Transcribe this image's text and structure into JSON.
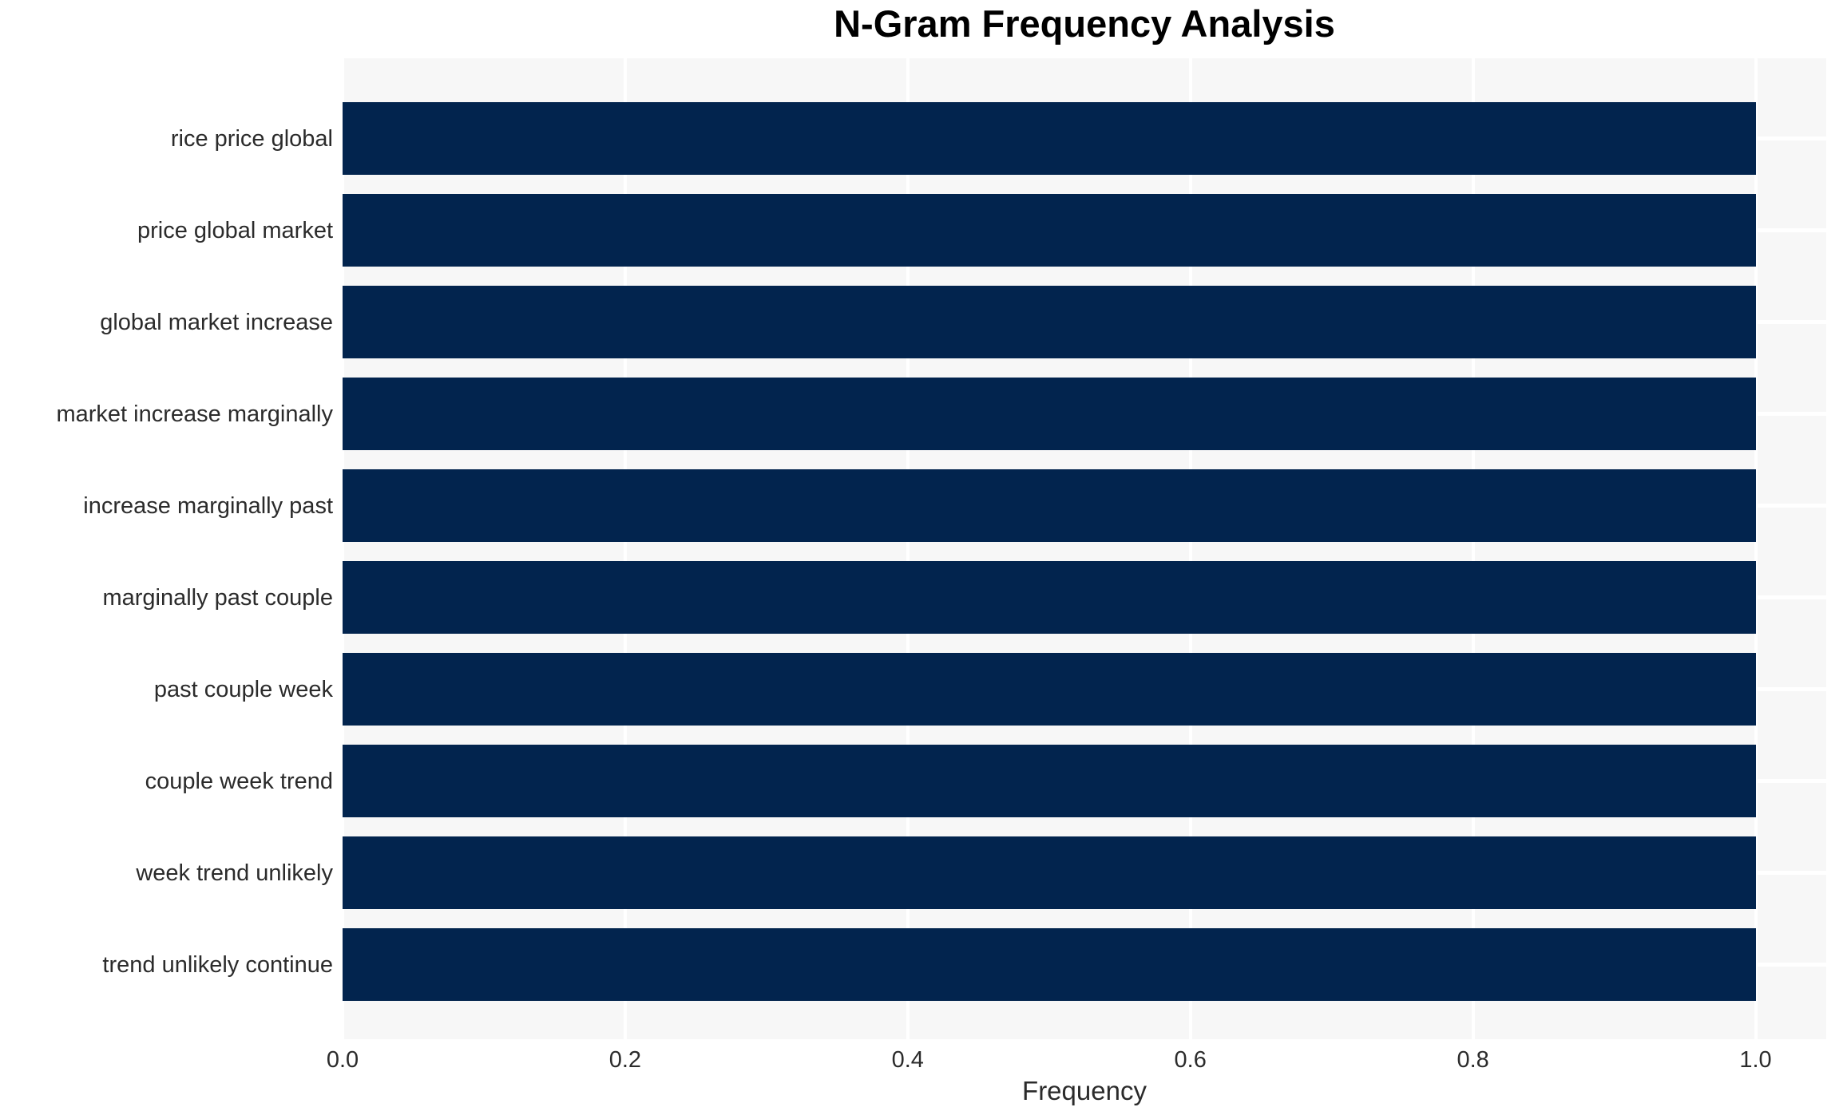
{
  "chart_data": {
    "type": "bar",
    "orientation": "horizontal",
    "title": "N-Gram Frequency Analysis",
    "xlabel": "Frequency",
    "ylabel": "",
    "categories": [
      "rice price global",
      "price global market",
      "global market increase",
      "market increase marginally",
      "increase marginally past",
      "marginally past couple",
      "past couple week",
      "couple week trend",
      "week trend unlikely",
      "trend unlikely continue"
    ],
    "values": [
      1.0,
      1.0,
      1.0,
      1.0,
      1.0,
      1.0,
      1.0,
      1.0,
      1.0,
      1.0
    ],
    "x_ticks": [
      "0.0",
      "0.2",
      "0.4",
      "0.6",
      "0.8",
      "1.0"
    ],
    "x_tick_values": [
      0.0,
      0.2,
      0.4,
      0.6,
      0.8,
      1.0
    ],
    "xlim": [
      0.0,
      1.05
    ],
    "grid": "white gridlines on light gray plot background, no spines",
    "legend": "none",
    "colors": {
      "bar": "#02244e",
      "plot_background": "#f7f7f7",
      "gridline": "#ffffff",
      "axis_text": "#2b2b2b",
      "title_text": "#000000",
      "figure_background": "#ffffff"
    }
  }
}
